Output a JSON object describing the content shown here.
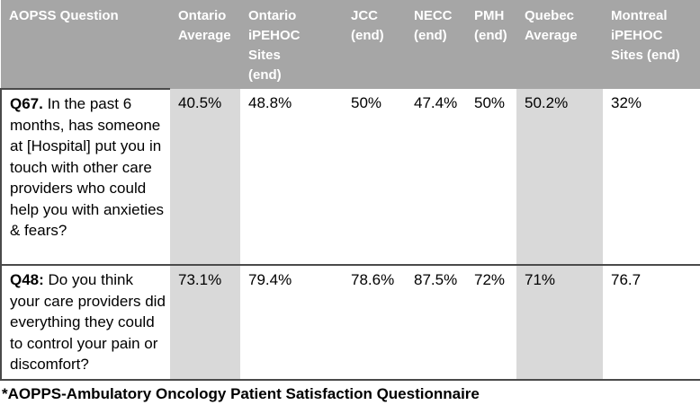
{
  "table": {
    "columns": [
      "AOPSS Question",
      "Ontario Average",
      "Ontario iPEHOC Sites (end)",
      "JCC (end)",
      "NECC (end)",
      "PMH (end)",
      "Quebec Average",
      "Montreal iPEHOC Sites (end)"
    ],
    "rows": [
      {
        "question_id": "Q67.",
        "question_text": " In the past 6 months, has someone at [Hospital] put you in touch with other care providers who could help you with anxieties & fears?",
        "values": [
          "40.5%",
          "48.8%",
          "50%",
          "47.4%",
          "50%",
          "50.2%",
          "32%"
        ]
      },
      {
        "question_id": "Q48:",
        "question_text": " Do you think your care providers did everything they could to control your pain or discomfort?",
        "values": [
          "73.1%",
          "79.4%",
          "78.6%",
          "87.5%",
          "72%",
          "71%",
          "76.7"
        ]
      }
    ],
    "shaded_columns": [
      1,
      6
    ],
    "colors": {
      "header_bg": "#a6a6a6",
      "header_text": "#ffffff",
      "shaded_bg": "#d9d9d9",
      "border_dark": "#4a4a4a",
      "border_light": "#bfbfbf"
    }
  },
  "footnote": "*AOPPS-Ambulatory Oncology Patient Satisfaction Questionnaire"
}
